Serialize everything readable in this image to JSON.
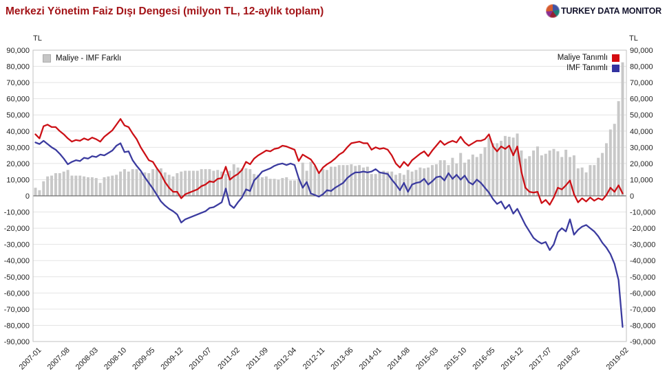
{
  "header": {
    "title": "Merkezi Yönetim Faiz Dışı Dengesi (milyon TL, 12-aylık toplam)",
    "brand_1": "TURKEY DATA",
    "brand_2": "MONITOR"
  },
  "axes": {
    "unit_left": "TL",
    "unit_right": "TL"
  },
  "legend": {
    "bar_label": "Maliye - IMF Farklı",
    "red_label": "Maliye Tanımlı",
    "blue_label": "IMF Tanımlı"
  },
  "colors": {
    "title_red": "#a31418",
    "line_red": "#cc1016",
    "line_blue": "#3b3b9f",
    "bar_gray": "#c8c8c8",
    "grid": "#e4e4e4",
    "zero_line": "#6e6e6e",
    "plot_border": "#c2c2c2",
    "tick_text": "#222222"
  },
  "chart_data": {
    "type": "bar+line combo",
    "title": "Merkezi Yönetim Faiz Dışı Dengesi (milyon TL, 12-aylık toplam)",
    "ylabel": "TL",
    "ylim": [
      -90000,
      90000
    ],
    "grid": true,
    "legend_position": "top-left (bar) / top-right (lines)",
    "y_ticks": [
      "90,000",
      "80,000",
      "70,000",
      "60,000",
      "50,000",
      "40,000",
      "30,000",
      "20,000",
      "10,000",
      "0",
      "-10,000",
      "-20,000",
      "-30,000",
      "-40,000",
      "-50,000",
      "-60,000",
      "-70,000",
      "-80,000",
      "-90,000"
    ],
    "x_ticks": [
      {
        "label": "2007-01",
        "i": 0
      },
      {
        "label": "2007-08",
        "i": 7
      },
      {
        "label": "2008-03",
        "i": 14
      },
      {
        "label": "2008-10",
        "i": 21
      },
      {
        "label": "2009-05",
        "i": 28
      },
      {
        "label": "2009-12",
        "i": 35
      },
      {
        "label": "2010-07",
        "i": 42
      },
      {
        "label": "2011-02",
        "i": 49
      },
      {
        "label": "2011-09",
        "i": 56
      },
      {
        "label": "2012-04",
        "i": 63
      },
      {
        "label": "2012-11",
        "i": 70
      },
      {
        "label": "2013-06",
        "i": 77
      },
      {
        "label": "2014-01",
        "i": 84
      },
      {
        "label": "2014-08",
        "i": 91
      },
      {
        "label": "2015-03",
        "i": 98
      },
      {
        "label": "2015-10",
        "i": 105
      },
      {
        "label": "2016-05",
        "i": 112
      },
      {
        "label": "2016-12",
        "i": 119
      },
      {
        "label": "2017-07",
        "i": 126
      },
      {
        "label": "2018-02",
        "i": 133
      },
      {
        "label": "2019-02",
        "i": 145
      }
    ],
    "months": [
      "2007-01",
      "2007-02",
      "2007-03",
      "2007-04",
      "2007-05",
      "2007-06",
      "2007-07",
      "2007-08",
      "2007-09",
      "2007-10",
      "2007-11",
      "2007-12",
      "2008-01",
      "2008-02",
      "2008-03",
      "2008-04",
      "2008-05",
      "2008-06",
      "2008-07",
      "2008-08",
      "2008-09",
      "2008-10",
      "2008-11",
      "2008-12",
      "2009-01",
      "2009-02",
      "2009-03",
      "2009-04",
      "2009-05",
      "2009-06",
      "2009-07",
      "2009-08",
      "2009-09",
      "2009-10",
      "2009-11",
      "2009-12",
      "2010-01",
      "2010-02",
      "2010-03",
      "2010-04",
      "2010-05",
      "2010-06",
      "2010-07",
      "2010-08",
      "2010-09",
      "2010-10",
      "2010-11",
      "2010-12",
      "2011-01",
      "2011-02",
      "2011-03",
      "2011-04",
      "2011-05",
      "2011-06",
      "2011-07",
      "2011-08",
      "2011-09",
      "2011-10",
      "2011-11",
      "2011-12",
      "2012-01",
      "2012-02",
      "2012-03",
      "2012-04",
      "2012-05",
      "2012-06",
      "2012-07",
      "2012-08",
      "2012-09",
      "2012-10",
      "2012-11",
      "2012-12",
      "2013-01",
      "2013-02",
      "2013-03",
      "2013-04",
      "2013-05",
      "2013-06",
      "2013-07",
      "2013-08",
      "2013-09",
      "2013-10",
      "2013-11",
      "2013-12",
      "2014-01",
      "2014-02",
      "2014-03",
      "2014-04",
      "2014-05",
      "2014-06",
      "2014-07",
      "2014-08",
      "2014-09",
      "2014-10",
      "2014-11",
      "2014-12",
      "2015-01",
      "2015-02",
      "2015-03",
      "2015-04",
      "2015-05",
      "2015-06",
      "2015-07",
      "2015-08",
      "2015-09",
      "2015-10",
      "2015-11",
      "2015-12",
      "2016-01",
      "2016-02",
      "2016-03",
      "2016-04",
      "2016-05",
      "2016-06",
      "2016-07",
      "2016-08",
      "2016-09",
      "2016-10",
      "2016-11",
      "2016-12",
      "2017-01",
      "2017-02",
      "2017-03",
      "2017-04",
      "2017-05",
      "2017-06",
      "2017-07",
      "2017-08",
      "2017-09",
      "2017-10",
      "2017-11",
      "2017-12",
      "2018-01",
      "2018-02",
      "2018-03",
      "2018-04",
      "2018-05",
      "2018-06",
      "2018-07",
      "2018-08",
      "2018-09",
      "2018-10",
      "2018-11",
      "2018-12",
      "2019-01",
      "2019-02"
    ],
    "series": [
      {
        "name": "Maliye - IMF Farklı",
        "type": "bar",
        "color": "#c8c8c8",
        "values": [
          5000,
          3500,
          9000,
          12000,
          12500,
          14000,
          14000,
          15000,
          16000,
          12500,
          12500,
          12500,
          12000,
          11500,
          11500,
          11000,
          8000,
          11500,
          12000,
          12500,
          13000,
          15000,
          16500,
          15000,
          16500,
          16500,
          14500,
          14500,
          14000,
          16500,
          16500,
          17000,
          14500,
          13000,
          12000,
          14000,
          15000,
          15500,
          15500,
          15500,
          15500,
          16500,
          16500,
          16500,
          15500,
          16000,
          15000,
          13500,
          15500,
          19500,
          17500,
          17000,
          17000,
          16500,
          13500,
          13000,
          11500,
          12000,
          10500,
          10500,
          10000,
          11000,
          11500,
          9500,
          9500,
          10500,
          20500,
          15500,
          21000,
          18500,
          14500,
          16500,
          16000,
          18000,
          18000,
          19000,
          19000,
          19000,
          19500,
          18500,
          19000,
          17500,
          18000,
          13500,
          13500,
          14500,
          15500,
          15000,
          15000,
          13000,
          14000,
          13000,
          16000,
          15000,
          16000,
          17500,
          17000,
          17500,
          19000,
          19500,
          22000,
          22000,
          19000,
          23500,
          20000,
          26500,
          20500,
          22500,
          25500,
          24000,
          26000,
          30000,
          36000,
          32500,
          32500,
          34000,
          37000,
          36500,
          36000,
          38500,
          28000,
          23000,
          24500,
          28000,
          30500,
          25000,
          26000,
          28000,
          29000,
          27500,
          24000,
          28500,
          24000,
          25000,
          17000,
          17500,
          14500,
          19000,
          19000,
          23500,
          26500,
          32500,
          41000,
          44500,
          58500,
          82500
        ]
      },
      {
        "name": "Maliye Tanımlı",
        "type": "line",
        "color": "#cc1016",
        "values": [
          38000,
          35500,
          43000,
          44000,
          42500,
          42500,
          40000,
          38000,
          35500,
          33500,
          34500,
          34000,
          35500,
          34500,
          36000,
          35000,
          33500,
          36500,
          38500,
          40500,
          44000,
          47500,
          43500,
          42500,
          38500,
          35000,
          30000,
          26000,
          22000,
          21000,
          17000,
          13500,
          8500,
          5000,
          2500,
          2500,
          -1500,
          1000,
          2000,
          3000,
          4000,
          6000,
          7000,
          9000,
          8500,
          10500,
          11000,
          18000,
          10000,
          12000,
          13500,
          16000,
          21000,
          19500,
          23000,
          25000,
          26500,
          28000,
          27500,
          29000,
          29500,
          31000,
          30500,
          29500,
          28500,
          21500,
          25500,
          24000,
          22500,
          19000,
          14000,
          17500,
          19500,
          21000,
          23000,
          25500,
          27000,
          30000,
          32500,
          33000,
          33500,
          32500,
          32500,
          28500,
          30000,
          29000,
          29500,
          28500,
          25000,
          20000,
          17500,
          21000,
          18500,
          22000,
          24000,
          26000,
          27500,
          24500,
          28000,
          31000,
          34000,
          31500,
          33000,
          34000,
          33000,
          36500,
          33000,
          31000,
          32500,
          34000,
          34000,
          35000,
          38000,
          30500,
          27500,
          30500,
          29000,
          31000,
          25000,
          30500,
          15000,
          5000,
          2500,
          2000,
          2500,
          -4500,
          -2500,
          -5500,
          -1000,
          5000,
          4000,
          6500,
          9500,
          1000,
          -4000,
          -1500,
          -3500,
          -1000,
          -3000,
          -1500,
          -2500,
          500,
          5000,
          2500,
          6500,
          1500
        ]
      },
      {
        "name": "IMF Tanımlı",
        "type": "line",
        "color": "#3b3b9f",
        "values": [
          33000,
          32000,
          34000,
          32000,
          30000,
          28500,
          26000,
          23000,
          19500,
          21000,
          22000,
          21500,
          23500,
          23000,
          24500,
          24000,
          25500,
          25000,
          26500,
          28000,
          31000,
          32500,
          27000,
          27500,
          22000,
          18500,
          15500,
          11500,
          8000,
          4500,
          500,
          -3500,
          -6000,
          -8000,
          -9500,
          -11500,
          -16500,
          -14500,
          -13500,
          -12500,
          -11500,
          -10500,
          -9500,
          -7500,
          -7000,
          -5500,
          -4000,
          4500,
          -5500,
          -7500,
          -4000,
          -1000,
          4000,
          3000,
          9500,
          12000,
          15000,
          16000,
          17000,
          18500,
          19500,
          20000,
          19000,
          20000,
          19000,
          11000,
          5000,
          8500,
          1500,
          500,
          -500,
          1000,
          3500,
          3000,
          5000,
          6500,
          8000,
          11000,
          13000,
          14500,
          14500,
          15000,
          14500,
          15000,
          16500,
          14500,
          14000,
          13500,
          10000,
          7000,
          3500,
          8000,
          2500,
          7000,
          8000,
          8500,
          10500,
          7000,
          9000,
          11500,
          12000,
          9500,
          14000,
          10500,
          13000,
          10000,
          12500,
          8500,
          7000,
          10000,
          8000,
          5000,
          2000,
          -2000,
          -5000,
          -3500,
          -8000,
          -5500,
          -11000,
          -8000,
          -13000,
          -18000,
          -22000,
          -26000,
          -28000,
          -29500,
          -28500,
          -33500,
          -30000,
          -22500,
          -20000,
          -22000,
          -14500,
          -24000,
          -21000,
          -19000,
          -18000,
          -20000,
          -22000,
          -25000,
          -29000,
          -32000,
          -36000,
          -42000,
          -52000,
          -81000
        ]
      }
    ]
  }
}
